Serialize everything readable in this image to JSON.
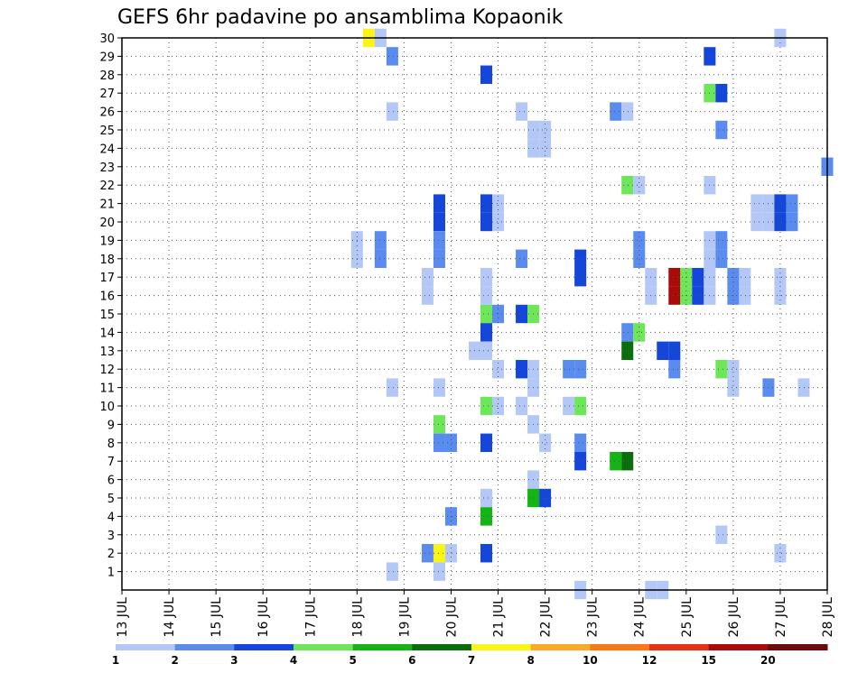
{
  "chart_data": {
    "type": "heatmap",
    "title": "GEFS 6hr padavine po ansamblima Kopaonik",
    "xlabel": "",
    "ylabel": "",
    "x_tick_labels": [
      "13 JUL",
      "14 JUL",
      "15 JUL",
      "16 JUL",
      "17 JUL",
      "18 JUL",
      "19 JUL",
      "20 JUL",
      "21 JUL",
      "22 JUL",
      "23 JUL",
      "24 JUL",
      "25 JUL",
      "26 JUL",
      "27 JUL",
      "28 JUL"
    ],
    "y_tick_labels": [
      "1",
      "2",
      "3",
      "4",
      "5",
      "6",
      "7",
      "8",
      "9",
      "10",
      "11",
      "12",
      "13",
      "14",
      "15",
      "16",
      "17",
      "18",
      "19",
      "20",
      "21",
      "22",
      "23",
      "24",
      "25",
      "26",
      "27",
      "28",
      "29",
      "30"
    ],
    "xlim_days": [
      13,
      28
    ],
    "ylim": [
      0,
      30
    ],
    "grid": true,
    "grid_style": "dotted",
    "legend_placement": "bottom",
    "colorbar": {
      "levels": [
        "1",
        "2",
        "3",
        "4",
        "5",
        "6",
        "7",
        "8",
        "10",
        "12",
        "15",
        "20"
      ],
      "colors": [
        "#b4c8f8",
        "#5a8cf0",
        "#1446dc",
        "#6ee65a",
        "#14b414",
        "#0a6e0a",
        "#faf514",
        "#faaa28",
        "#fa7814",
        "#e63214",
        "#aa0a0a",
        "#6e0a0a"
      ]
    },
    "cells": [
      {
        "d": 18.25,
        "m": 30,
        "c": 6
      },
      {
        "d": 18.5,
        "m": 30,
        "c": 0
      },
      {
        "d": 27.0,
        "m": 30,
        "c": 0
      },
      {
        "d": 18.75,
        "m": 29,
        "c": 1
      },
      {
        "d": 25.5,
        "m": 29,
        "c": 2
      },
      {
        "d": 20.75,
        "m": 28,
        "c": 2
      },
      {
        "d": 25.5,
        "m": 27,
        "c": 3
      },
      {
        "d": 25.75,
        "m": 27,
        "c": 2
      },
      {
        "d": 18.75,
        "m": 26,
        "c": 0
      },
      {
        "d": 21.5,
        "m": 26,
        "c": 0
      },
      {
        "d": 23.5,
        "m": 26,
        "c": 1
      },
      {
        "d": 23.75,
        "m": 26,
        "c": 0
      },
      {
        "d": 21.75,
        "m": 25,
        "c": 0
      },
      {
        "d": 22.0,
        "m": 25,
        "c": 0
      },
      {
        "d": 25.75,
        "m": 25,
        "c": 1
      },
      {
        "d": 21.75,
        "m": 24,
        "c": 0
      },
      {
        "d": 22.0,
        "m": 24,
        "c": 0
      },
      {
        "d": 28.0,
        "m": 23,
        "c": 1
      },
      {
        "d": 23.75,
        "m": 22,
        "c": 3
      },
      {
        "d": 24.0,
        "m": 22,
        "c": 0
      },
      {
        "d": 25.5,
        "m": 22,
        "c": 0
      },
      {
        "d": 19.75,
        "m": 21,
        "c": 2
      },
      {
        "d": 20.75,
        "m": 21,
        "c": 2
      },
      {
        "d": 21.0,
        "m": 21,
        "c": 0
      },
      {
        "d": 26.5,
        "m": 21,
        "c": 0
      },
      {
        "d": 26.75,
        "m": 21,
        "c": 0
      },
      {
        "d": 27.0,
        "m": 21,
        "c": 2
      },
      {
        "d": 27.25,
        "m": 21,
        "c": 1
      },
      {
        "d": 19.75,
        "m": 20,
        "c": 2
      },
      {
        "d": 20.75,
        "m": 20,
        "c": 2
      },
      {
        "d": 21.0,
        "m": 20,
        "c": 0
      },
      {
        "d": 26.5,
        "m": 20,
        "c": 0
      },
      {
        "d": 26.75,
        "m": 20,
        "c": 0
      },
      {
        "d": 27.0,
        "m": 20,
        "c": 2
      },
      {
        "d": 27.25,
        "m": 20,
        "c": 1
      },
      {
        "d": 18.0,
        "m": 19,
        "c": 0
      },
      {
        "d": 18.5,
        "m": 19,
        "c": 1
      },
      {
        "d": 19.75,
        "m": 19,
        "c": 1
      },
      {
        "d": 24.0,
        "m": 19,
        "c": 1
      },
      {
        "d": 25.5,
        "m": 19,
        "c": 0
      },
      {
        "d": 25.75,
        "m": 19,
        "c": 1
      },
      {
        "d": 18.0,
        "m": 18,
        "c": 0
      },
      {
        "d": 18.5,
        "m": 18,
        "c": 1
      },
      {
        "d": 19.75,
        "m": 18,
        "c": 1
      },
      {
        "d": 24.0,
        "m": 18,
        "c": 1
      },
      {
        "d": 25.5,
        "m": 18,
        "c": 0
      },
      {
        "d": 25.75,
        "m": 18,
        "c": 1
      },
      {
        "d": 21.5,
        "m": 18,
        "c": 1
      },
      {
        "d": 22.75,
        "m": 18,
        "c": 2
      },
      {
        "d": 19.5,
        "m": 17,
        "c": 0
      },
      {
        "d": 20.75,
        "m": 17,
        "c": 0
      },
      {
        "d": 22.75,
        "m": 17,
        "c": 2
      },
      {
        "d": 24.25,
        "m": 17,
        "c": 0
      },
      {
        "d": 24.75,
        "m": 17,
        "c": 10
      },
      {
        "d": 25.0,
        "m": 17,
        "c": 3
      },
      {
        "d": 25.25,
        "m": 17,
        "c": 2
      },
      {
        "d": 25.5,
        "m": 17,
        "c": 0
      },
      {
        "d": 26.0,
        "m": 17,
        "c": 1
      },
      {
        "d": 26.25,
        "m": 17,
        "c": 0
      },
      {
        "d": 27.0,
        "m": 17,
        "c": 0
      },
      {
        "d": 19.5,
        "m": 16,
        "c": 0
      },
      {
        "d": 20.75,
        "m": 16,
        "c": 0
      },
      {
        "d": 24.25,
        "m": 16,
        "c": 0
      },
      {
        "d": 24.75,
        "m": 16,
        "c": 10
      },
      {
        "d": 25.0,
        "m": 16,
        "c": 3
      },
      {
        "d": 25.25,
        "m": 16,
        "c": 2
      },
      {
        "d": 25.5,
        "m": 16,
        "c": 0
      },
      {
        "d": 26.0,
        "m": 16,
        "c": 1
      },
      {
        "d": 26.25,
        "m": 16,
        "c": 0
      },
      {
        "d": 27.0,
        "m": 16,
        "c": 0
      },
      {
        "d": 20.75,
        "m": 15,
        "c": 3
      },
      {
        "d": 21.0,
        "m": 15,
        "c": 1
      },
      {
        "d": 21.5,
        "m": 15,
        "c": 2
      },
      {
        "d": 21.75,
        "m": 15,
        "c": 3
      },
      {
        "d": 20.75,
        "m": 14,
        "c": 2
      },
      {
        "d": 23.75,
        "m": 14,
        "c": 1
      },
      {
        "d": 24.0,
        "m": 14,
        "c": 3
      },
      {
        "d": 20.5,
        "m": 13,
        "c": 0
      },
      {
        "d": 20.75,
        "m": 13,
        "c": 0
      },
      {
        "d": 23.75,
        "m": 13,
        "c": 5
      },
      {
        "d": 24.5,
        "m": 13,
        "c": 2
      },
      {
        "d": 24.75,
        "m": 13,
        "c": 2
      },
      {
        "d": 21.0,
        "m": 12,
        "c": 0
      },
      {
        "d": 21.5,
        "m": 12,
        "c": 2
      },
      {
        "d": 21.75,
        "m": 12,
        "c": 0
      },
      {
        "d": 22.5,
        "m": 12,
        "c": 1
      },
      {
        "d": 22.75,
        "m": 12,
        "c": 1
      },
      {
        "d": 24.75,
        "m": 12,
        "c": 1
      },
      {
        "d": 25.75,
        "m": 12,
        "c": 3
      },
      {
        "d": 26.0,
        "m": 12,
        "c": 0
      },
      {
        "d": 18.75,
        "m": 11,
        "c": 0
      },
      {
        "d": 19.75,
        "m": 11,
        "c": 0
      },
      {
        "d": 21.75,
        "m": 11,
        "c": 0
      },
      {
        "d": 26.0,
        "m": 11,
        "c": 0
      },
      {
        "d": 26.75,
        "m": 11,
        "c": 1
      },
      {
        "d": 27.5,
        "m": 11,
        "c": 0
      },
      {
        "d": 20.75,
        "m": 10,
        "c": 3
      },
      {
        "d": 21.0,
        "m": 10,
        "c": 0
      },
      {
        "d": 21.5,
        "m": 10,
        "c": 0
      },
      {
        "d": 22.5,
        "m": 10,
        "c": 0
      },
      {
        "d": 22.75,
        "m": 10,
        "c": 3
      },
      {
        "d": 19.75,
        "m": 9,
        "c": 3
      },
      {
        "d": 21.75,
        "m": 9,
        "c": 0
      },
      {
        "d": 19.75,
        "m": 8,
        "c": 1
      },
      {
        "d": 20.0,
        "m": 8,
        "c": 1
      },
      {
        "d": 20.75,
        "m": 8,
        "c": 2
      },
      {
        "d": 22.0,
        "m": 8,
        "c": 0
      },
      {
        "d": 22.75,
        "m": 8,
        "c": 1
      },
      {
        "d": 22.75,
        "m": 7,
        "c": 2
      },
      {
        "d": 23.5,
        "m": 7,
        "c": 4
      },
      {
        "d": 23.75,
        "m": 7,
        "c": 5
      },
      {
        "d": 21.75,
        "m": 6,
        "c": 0
      },
      {
        "d": 20.75,
        "m": 5,
        "c": 0
      },
      {
        "d": 21.75,
        "m": 5,
        "c": 4
      },
      {
        "d": 22.0,
        "m": 5,
        "c": 2
      },
      {
        "d": 20.0,
        "m": 4,
        "c": 1
      },
      {
        "d": 20.75,
        "m": 4,
        "c": 4
      },
      {
        "d": 25.75,
        "m": 3,
        "c": 0
      },
      {
        "d": 19.5,
        "m": 2,
        "c": 1
      },
      {
        "d": 19.75,
        "m": 2,
        "c": 6
      },
      {
        "d": 20.0,
        "m": 2,
        "c": 0
      },
      {
        "d": 20.75,
        "m": 2,
        "c": 2
      },
      {
        "d": 27.0,
        "m": 2,
        "c": 0
      },
      {
        "d": 18.75,
        "m": 1,
        "c": 0
      },
      {
        "d": 19.75,
        "m": 1,
        "c": 0
      },
      {
        "d": 22.75,
        "m": 0,
        "c": 0
      },
      {
        "d": 24.25,
        "m": 0,
        "c": 0
      },
      {
        "d": 24.5,
        "m": 0,
        "c": 0
      }
    ]
  }
}
